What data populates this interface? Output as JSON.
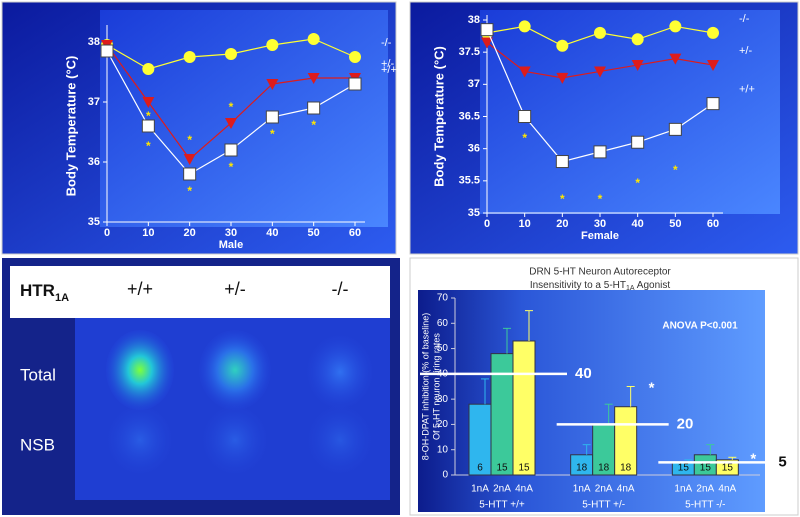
{
  "chart_data": [
    {
      "type": "line",
      "x_label": "Male",
      "y_label": "Body Temperature (°C)",
      "x": [
        0,
        10,
        20,
        30,
        40,
        50,
        60
      ],
      "xlim": [
        0,
        60
      ],
      "xticks": [
        0,
        10,
        20,
        30,
        40,
        50,
        60
      ],
      "ylim": [
        35,
        38.2
      ],
      "yticks": [
        35,
        36,
        37,
        38
      ],
      "series": [
        {
          "name": "-/-",
          "color": "#ffff33",
          "marker": "circle",
          "values": [
            37.95,
            37.55,
            37.75,
            37.8,
            37.95,
            38.05,
            37.75
          ]
        },
        {
          "name": "+/-",
          "color": "#dd1c1c",
          "marker": "triangle",
          "values": [
            37.95,
            37.0,
            36.05,
            36.65,
            37.3,
            37.4,
            37.4
          ]
        },
        {
          "name": "+/+",
          "color": "#ffffff",
          "marker": "square",
          "values": [
            37.85,
            36.6,
            35.8,
            36.2,
            36.75,
            36.9,
            37.3
          ]
        }
      ],
      "annotations": [
        {
          "text": "*",
          "x": 10,
          "y": 36.3
        },
        {
          "text": "*",
          "x": 10,
          "y": 36.8
        },
        {
          "text": "*",
          "x": 20,
          "y": 35.55
        },
        {
          "text": "*",
          "x": 20,
          "y": 36.4
        },
        {
          "text": "*",
          "x": 30,
          "y": 35.95
        },
        {
          "text": "*",
          "x": 30,
          "y": 36.95
        },
        {
          "text": "*",
          "x": 40,
          "y": 36.5
        },
        {
          "text": "*",
          "x": 40,
          "y": 37.95
        },
        {
          "text": "*",
          "x": 50,
          "y": 36.65
        }
      ]
    },
    {
      "type": "line",
      "x_label": "Female",
      "y_label": "Body Temperature (°C)",
      "x": [
        0,
        10,
        20,
        30,
        40,
        50,
        60
      ],
      "xlim": [
        0,
        60
      ],
      "xticks": [
        0,
        10,
        20,
        30,
        40,
        50,
        60
      ],
      "ylim": [
        35,
        38
      ],
      "yticks": [
        35,
        35.5,
        36,
        36.5,
        37,
        37.5,
        38
      ],
      "series": [
        {
          "name": "-/-",
          "color": "#ffff33",
          "marker": "circle",
          "values": [
            37.8,
            37.9,
            37.6,
            37.8,
            37.7,
            37.9,
            37.8
          ]
        },
        {
          "name": "+/-",
          "color": "#dd1c1c",
          "marker": "triangle",
          "values": [
            37.65,
            37.2,
            37.1,
            37.2,
            37.3,
            37.4,
            37.3
          ]
        },
        {
          "name": "+/+",
          "color": "#ffffff",
          "marker": "square",
          "values": [
            37.85,
            36.5,
            35.8,
            35.95,
            36.1,
            36.3,
            36.7
          ]
        }
      ],
      "annotations": [
        {
          "text": "*",
          "x": 10,
          "y": 36.2
        },
        {
          "text": "*",
          "x": 20,
          "y": 35.25
        },
        {
          "text": "*",
          "x": 30,
          "y": 35.25
        },
        {
          "text": "*",
          "x": 40,
          "y": 35.5
        },
        {
          "text": "*",
          "x": 50,
          "y": 35.7
        }
      ]
    },
    {
      "type": "bar",
      "title": [
        "DRN 5-HT Neuron Autoreceptor",
        "Insensitivity to a 5-HT",
        "1A",
        " Agonist"
      ],
      "y_label": [
        "8-OH-DPAT inhibition (% of baseline)",
        "Of 5-HT neuron firing rates"
      ],
      "categories": [
        "5-HTT +/+",
        "5-HTT +/-",
        "5-HTT -/-"
      ],
      "ylim": [
        0,
        70
      ],
      "yticks": [
        0,
        10,
        20,
        30,
        40,
        50,
        60,
        70
      ],
      "series": [
        {
          "name": "1nA",
          "color": "#2fb6ee",
          "values": [
            28,
            8,
            5
          ],
          "errors": [
            10,
            4,
            1
          ],
          "n": [
            6,
            18,
            15
          ]
        },
        {
          "name": "2nA",
          "color": "#3cc99a",
          "values": [
            48,
            20,
            8
          ],
          "errors": [
            10,
            8,
            4
          ],
          "n": [
            15,
            18,
            15
          ]
        },
        {
          "name": "4nA",
          "color": "#ffff66",
          "values": [
            53,
            27,
            6
          ],
          "errors": [
            12,
            8,
            1
          ],
          "n": [
            15,
            18,
            15
          ]
        }
      ],
      "reference_lines": [
        {
          "value": 40,
          "label": "40"
        },
        {
          "value": 20,
          "label": "20"
        },
        {
          "value": 5,
          "label": "5"
        }
      ],
      "annotations": [
        {
          "text": "*",
          "group": 1
        },
        {
          "text": "*",
          "group": 2
        }
      ],
      "stat": "ANOVA P<0.001"
    }
  ],
  "image_panel": {
    "gene": "HTR",
    "gene_subscript": "1A",
    "genotypes": [
      "+/+",
      "+/-",
      "-/-"
    ],
    "rows": [
      "Total",
      "NSB"
    ]
  }
}
